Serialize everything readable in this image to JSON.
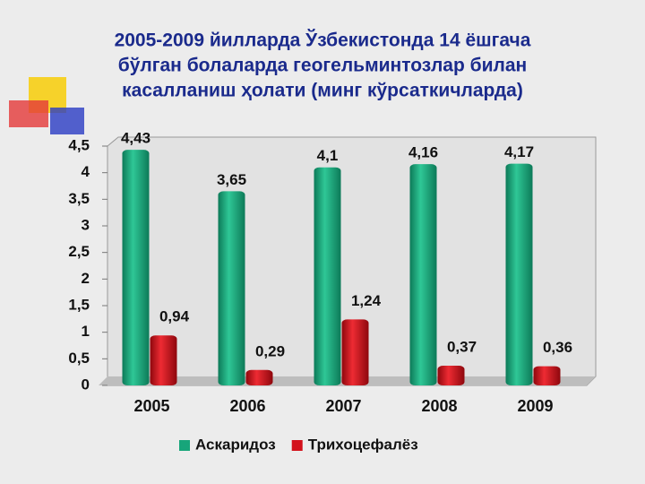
{
  "chart_data": {
    "type": "bar",
    "title": [
      "2005-2009 йилларда Ўзбекистонда 14 ёшгача",
      "бўлган болаларда геогельминтозлар билан",
      "касалланиш ҳолати (минг кўрсаткичларда)"
    ],
    "categories": [
      "2005",
      "2006",
      "2007",
      "2008",
      "2009"
    ],
    "series": [
      {
        "name": "Аскаридоз",
        "color": "#17a57a",
        "values": [
          4.43,
          3.65,
          4.1,
          4.16,
          4.17
        ],
        "value_labels": [
          "4,43",
          "3,65",
          "4,1",
          "4,16",
          "4,17"
        ]
      },
      {
        "name": "Трихоцефалёз",
        "color": "#d3111b",
        "values": [
          0.94,
          0.29,
          1.24,
          0.37,
          0.36
        ],
        "value_labels": [
          "0,94",
          "0,29",
          "1,24",
          "0,37",
          "0,36"
        ]
      }
    ],
    "ylim": [
      0,
      4.5
    ],
    "yticks": [
      0,
      {
        "value": 0.5,
        "label": "0,5"
      },
      1,
      {
        "value": 1.5,
        "label": "1,5"
      },
      2,
      {
        "value": 2.5,
        "label": "2,5"
      },
      3,
      {
        "value": 3.5,
        "label": "3,5"
      },
      4,
      {
        "value": 4.5,
        "label": "4,5"
      }
    ],
    "legend": "bottom"
  }
}
